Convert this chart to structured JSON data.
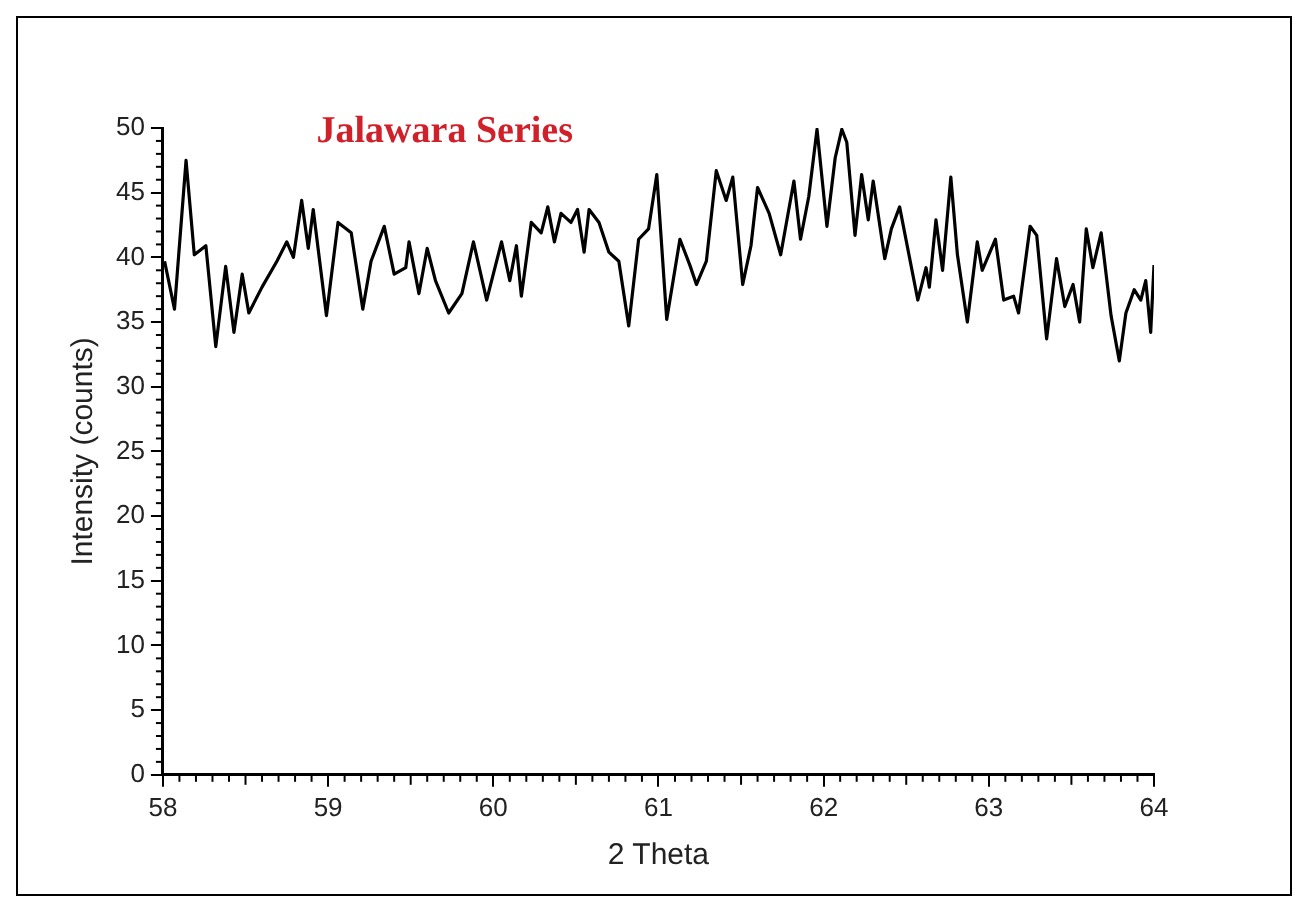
{
  "chart_data": {
    "type": "line",
    "title": "Jalawara Series",
    "xlabel": "2 Theta",
    "ylabel": "Intensity (counts)",
    "xlim": [
      58,
      64
    ],
    "xticks": [
      58,
      59,
      60,
      61,
      62,
      63,
      64
    ],
    "ylim": [
      0,
      50
    ],
    "yticks": [
      0,
      5,
      10,
      15,
      20,
      25,
      30,
      35,
      40,
      45,
      50
    ],
    "grid": false,
    "legend": false,
    "marker": "none",
    "line_style": "solid",
    "series": [
      {
        "color": "#000000",
        "x": [
          58.01,
          58.07,
          58.14,
          58.19,
          58.26,
          58.32,
          58.38,
          58.43,
          58.48,
          58.52,
          58.6,
          58.69,
          58.75,
          58.79,
          58.84,
          58.88,
          58.91,
          58.99,
          59.06,
          59.14,
          59.21,
          59.26,
          59.34,
          59.4,
          59.47,
          59.49,
          59.55,
          59.6,
          59.65,
          59.73,
          59.81,
          59.88,
          59.96,
          60.05,
          60.1,
          60.14,
          60.17,
          60.23,
          60.29,
          60.33,
          60.37,
          60.41,
          60.47,
          60.51,
          60.55,
          60.58,
          60.64,
          60.7,
          60.76,
          60.82,
          60.88,
          60.94,
          60.99,
          61.05,
          61.13,
          61.19,
          61.23,
          61.29,
          61.35,
          61.41,
          61.45,
          61.51,
          61.56,
          61.6,
          61.67,
          61.74,
          61.82,
          61.86,
          61.91,
          61.96,
          62.02,
          62.07,
          62.11,
          62.14,
          62.19,
          62.23,
          62.27,
          62.3,
          62.37,
          62.41,
          62.46,
          62.57,
          62.62,
          62.64,
          62.68,
          62.72,
          62.77,
          62.81,
          62.87,
          62.93,
          62.96,
          63.04,
          63.09,
          63.15,
          63.18,
          63.25,
          63.29,
          63.35,
          63.41,
          63.46,
          63.51,
          63.55,
          63.59,
          63.63,
          63.68,
          63.74,
          63.79,
          63.83,
          63.88,
          63.92,
          63.95,
          63.98,
          64.0
        ],
        "values": [
          39.7,
          36.0,
          47.5,
          40.2,
          40.9,
          33.1,
          39.3,
          34.2,
          38.7,
          35.7,
          37.7,
          39.7,
          41.2,
          40.0,
          44.4,
          40.7,
          43.7,
          35.5,
          42.7,
          41.9,
          36.0,
          39.7,
          42.4,
          38.7,
          39.2,
          41.2,
          37.2,
          40.7,
          38.2,
          35.7,
          37.2,
          41.2,
          36.7,
          41.2,
          38.2,
          40.9,
          37.0,
          42.7,
          41.9,
          43.9,
          41.2,
          43.4,
          42.7,
          43.7,
          40.4,
          43.7,
          42.7,
          40.4,
          39.7,
          34.7,
          41.4,
          42.2,
          46.4,
          35.2,
          41.4,
          39.4,
          37.9,
          39.7,
          46.7,
          44.4,
          46.2,
          37.9,
          40.9,
          45.4,
          43.4,
          40.2,
          45.9,
          41.4,
          44.7,
          49.9,
          42.4,
          47.7,
          49.9,
          48.9,
          41.7,
          46.4,
          42.9,
          45.9,
          39.9,
          42.2,
          43.9,
          36.7,
          39.2,
          37.7,
          42.9,
          39.0,
          46.2,
          40.2,
          35.0,
          41.2,
          39.0,
          41.4,
          36.7,
          37.0,
          35.7,
          42.4,
          41.7,
          33.7,
          39.9,
          36.2,
          37.9,
          35.0,
          42.2,
          39.2,
          41.9,
          35.5,
          32.0,
          35.7,
          37.5,
          36.7,
          38.2,
          34.2,
          39.4
        ]
      }
    ]
  }
}
